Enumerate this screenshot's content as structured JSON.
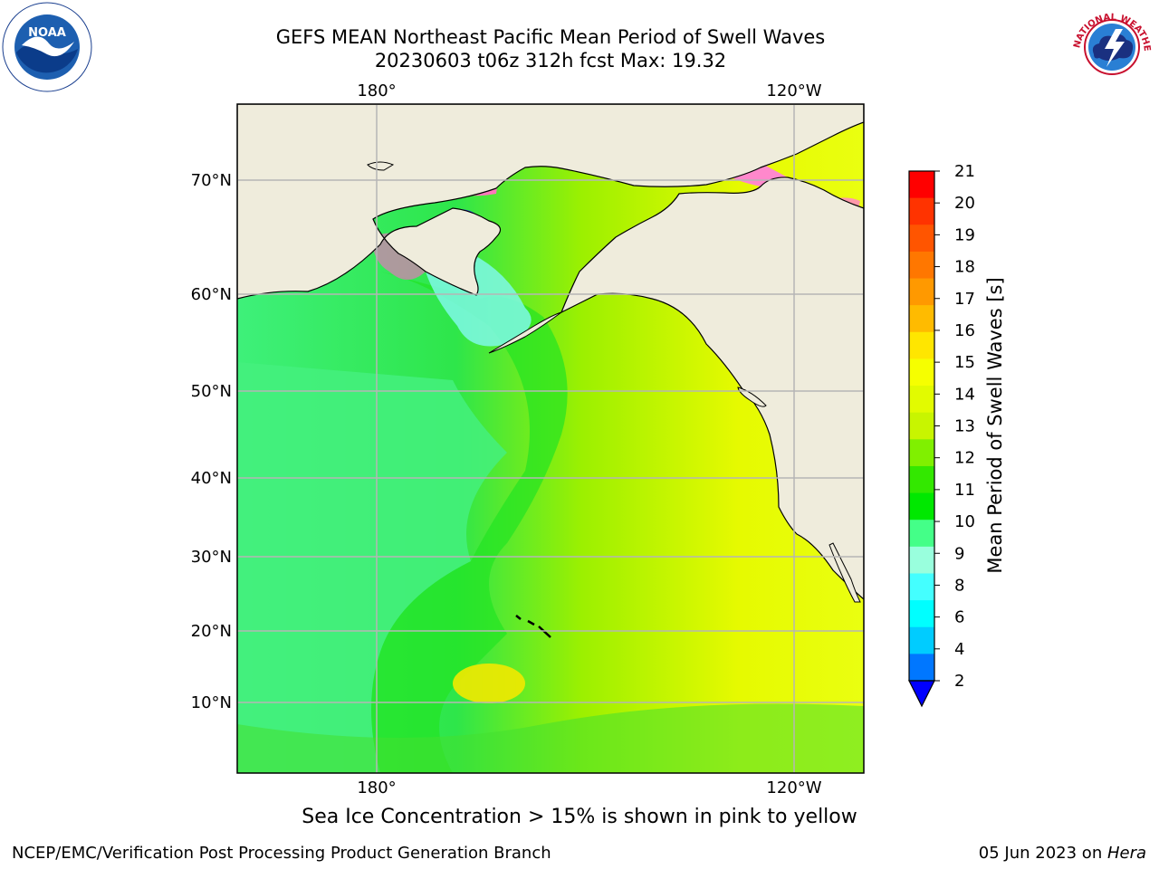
{
  "title": {
    "line1": "GEFS MEAN Northeast Pacific Mean Period of Swell Waves",
    "line2": "20230603 t06z 312h fcst   Max: 19.32"
  },
  "logos": {
    "left": "noaa-logo",
    "right": "nws-logo",
    "left_label": "NOAA",
    "right_label": "NATIONAL WEATHER SERVICE"
  },
  "map": {
    "lon_labels": [
      "180°",
      "120°W"
    ],
    "lat_labels": [
      "70°N",
      "60°N",
      "50°N",
      "40°N",
      "30°N",
      "20°N",
      "10°N"
    ],
    "land_color": "#efecdc",
    "grid_color": "#b0b0b0"
  },
  "colorbar": {
    "label": "Mean Period of Swell Waves [s]",
    "ticks": [
      "21",
      "20",
      "19",
      "18",
      "17",
      "16",
      "15",
      "14",
      "13",
      "12",
      "11",
      "10",
      "9",
      "8",
      "7",
      "6",
      "5",
      "4",
      "3",
      "2"
    ],
    "tick_labels": [
      "21",
      "20",
      "19",
      "18",
      "17",
      "16",
      "15",
      "14",
      "13",
      "12",
      "11",
      "10",
      "9",
      "8",
      "6",
      "4",
      "2"
    ],
    "colors": [
      "#ff0000",
      "#ff3300",
      "#ff5500",
      "#ff7700",
      "#ff9900",
      "#ffbb00",
      "#ffe600",
      "#f6ff00",
      "#e2fb00",
      "#c8f500",
      "#80f000",
      "#33e800",
      "#00e800",
      "#44ff88",
      "#99ffdd",
      "#44ffff",
      "#00ffff",
      "#00ccff",
      "#0077ff"
    ],
    "under_color": "#0000ff"
  },
  "ice_note": "Sea Ice Concentration > 15% is shown in pink to yellow",
  "footer": {
    "left": "NCEP/EMC/Verification Post Processing Product Generation Branch",
    "date": "05 Jun 2023 on ",
    "machine": "Hera"
  }
}
